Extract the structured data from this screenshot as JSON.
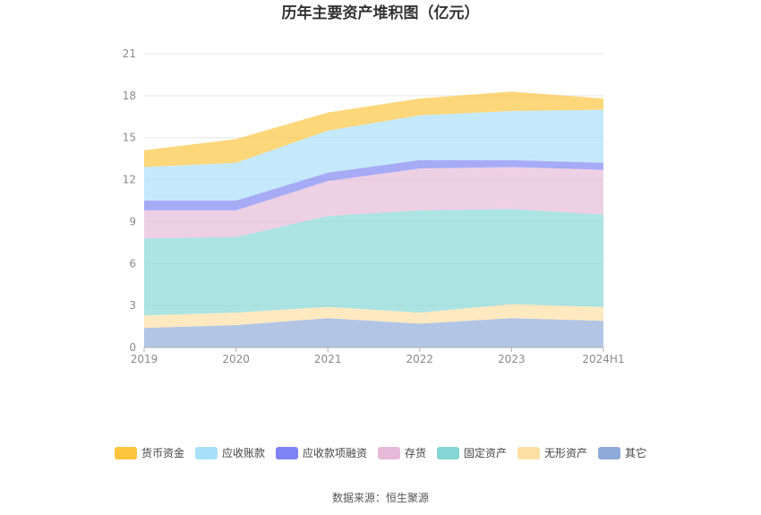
{
  "chart_data": {
    "type": "area",
    "stacked": true,
    "title": "历年主要资产堆积图（亿元）",
    "categories": [
      "2019",
      "2020",
      "2021",
      "2022",
      "2023",
      "2024H1"
    ],
    "ylim": [
      0,
      21
    ],
    "yticks": [
      0,
      3,
      6,
      9,
      12,
      15,
      18,
      21
    ],
    "grid": true,
    "legend_position": "bottom",
    "series": [
      {
        "name": "其它",
        "color": "#8eaad8",
        "values": [
          1.4,
          1.6,
          2.1,
          1.7,
          2.1,
          1.9
        ]
      },
      {
        "name": "无形资产",
        "color": "#fddfa3",
        "values": [
          0.9,
          0.9,
          0.8,
          0.8,
          1.0,
          1.0
        ]
      },
      {
        "name": "固定资产",
        "color": "#84d5d5",
        "values": [
          5.5,
          5.4,
          6.5,
          7.3,
          6.8,
          6.6
        ]
      },
      {
        "name": "存货",
        "color": "#e6b9d8",
        "values": [
          2.0,
          1.9,
          2.5,
          3.0,
          3.0,
          3.2
        ]
      },
      {
        "name": "应收款项融资",
        "color": "#7d83f2",
        "values": [
          0.7,
          0.7,
          0.6,
          0.6,
          0.5,
          0.5
        ]
      },
      {
        "name": "应收账款",
        "color": "#a8dffa",
        "values": [
          2.4,
          2.7,
          3.0,
          3.2,
          3.5,
          3.8
        ]
      },
      {
        "name": "货币资金",
        "color": "#fdc43d",
        "values": [
          1.2,
          1.7,
          1.3,
          1.2,
          1.4,
          0.8
        ]
      }
    ],
    "legend_order": [
      "货币资金",
      "应收账款",
      "应收款项融资",
      "存货",
      "固定资产",
      "无形资产",
      "其它"
    ]
  },
  "source": "数据来源：恒生聚源"
}
